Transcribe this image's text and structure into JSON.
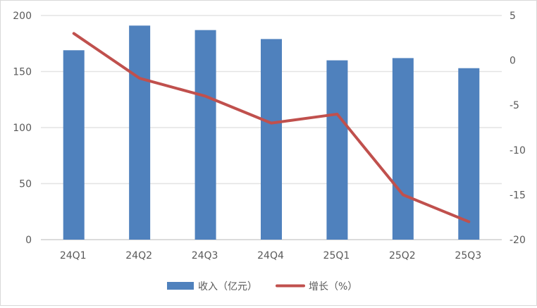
{
  "chart_data": {
    "type": "bar+line",
    "categories": [
      "24Q1",
      "24Q2",
      "24Q3",
      "24Q4",
      "25Q1",
      "25Q2",
      "25Q3"
    ],
    "series": [
      {
        "name": "收入（亿元）",
        "type": "bar",
        "axis": "left",
        "color": "#4f81bd",
        "values": [
          169,
          191,
          187,
          179,
          160,
          162,
          153
        ]
      },
      {
        "name": "增长（%）",
        "type": "line",
        "axis": "right",
        "color": "#c0504d",
        "values": [
          3,
          -2,
          -4,
          -7,
          -6,
          -15,
          -18
        ]
      }
    ],
    "left_axis": {
      "range": [
        0,
        200
      ],
      "ticks": [
        "0",
        "50",
        "100",
        "150",
        "200"
      ]
    },
    "right_axis": {
      "range": [
        -20,
        5
      ],
      "ticks": [
        "-20",
        "-15",
        "-10",
        "-5",
        "0",
        "5"
      ]
    },
    "grid": true,
    "legend": "bottom"
  }
}
